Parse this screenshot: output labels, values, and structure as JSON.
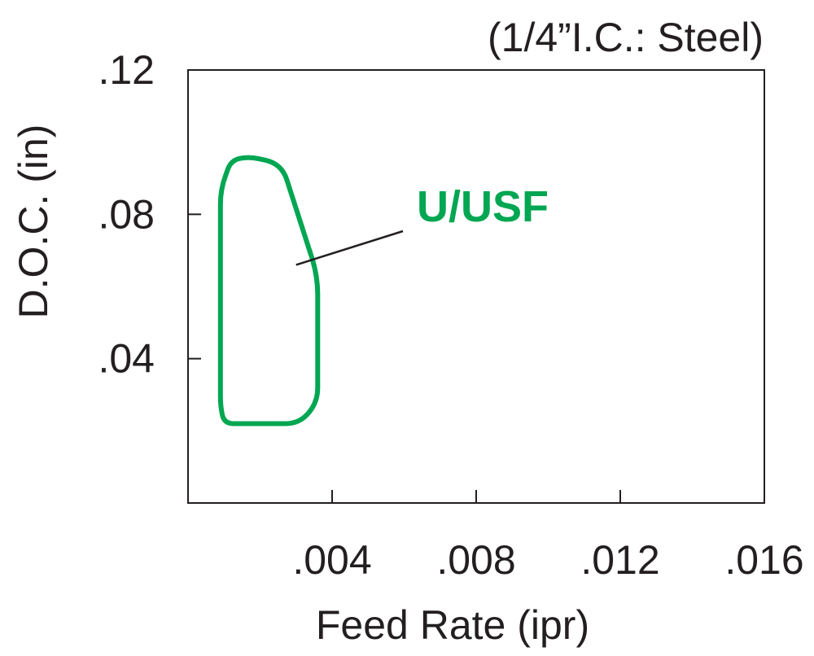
{
  "chart_data": {
    "type": "area",
    "title": "(1/4”I.C.: Steel)",
    "xlabel": "Feed Rate (ipr)",
    "ylabel": "D.O.C. (in)",
    "xlim": [
      0,
      0.016
    ],
    "ylim": [
      0,
      0.12
    ],
    "x_ticks": [
      0.004,
      0.008,
      0.012,
      0.016
    ],
    "x_tick_labels": [
      ".004",
      ".008",
      ".012",
      ".016"
    ],
    "y_ticks": [
      0.04,
      0.08,
      0.12
    ],
    "y_tick_labels": [
      ".04",
      ".08",
      ".12"
    ],
    "grid": false,
    "series": [
      {
        "name": "U/USF",
        "color": "#00a651",
        "shape": "closed-region",
        "outline": [
          [
            0.0009,
            0.087
          ],
          [
            0.0012,
            0.095
          ],
          [
            0.0017,
            0.096
          ],
          [
            0.0026,
            0.094
          ],
          [
            0.0036,
            0.063
          ],
          [
            0.0036,
            0.028
          ],
          [
            0.0031,
            0.022
          ],
          [
            0.001,
            0.022
          ],
          [
            0.0009,
            0.027
          ]
        ]
      }
    ],
    "annotations": [
      {
        "text": "U/USF",
        "color": "#00a651",
        "points_to": [
          0.003,
          0.066
        ]
      }
    ]
  }
}
